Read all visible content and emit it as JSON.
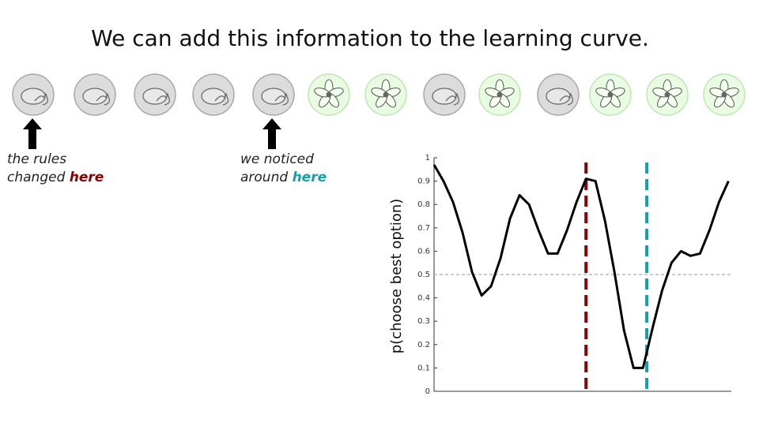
{
  "title": "We can add this information to the learning curve.",
  "annotations": [
    {
      "line1": "the rules",
      "line2": "changed",
      "emphasis": "here",
      "color": "#8b0000"
    },
    {
      "line1": "we noticed",
      "line2": "around",
      "emphasis": "here",
      "color": "#14a0a8"
    }
  ],
  "chart_data": {
    "type": "line",
    "y_label": "p(choose best option)",
    "x": [
      1,
      2,
      3,
      4,
      5,
      6,
      7,
      8,
      9,
      10,
      11,
      12,
      13,
      14,
      15,
      16,
      17,
      18,
      19,
      20,
      21,
      22,
      23,
      24,
      25,
      26,
      27,
      28,
      29,
      30,
      31,
      32
    ],
    "series": [
      {
        "name": "p(choose best option)",
        "color": "#000000",
        "values": [
          0.97,
          0.9,
          0.81,
          0.68,
          0.51,
          0.41,
          0.45,
          0.57,
          0.74,
          0.84,
          0.8,
          0.69,
          0.59,
          0.59,
          0.69,
          0.81,
          0.91,
          0.9,
          0.73,
          0.51,
          0.26,
          0.1,
          0.1,
          0.27,
          0.43,
          0.55,
          0.6,
          0.58,
          0.59,
          0.69,
          0.81,
          0.9
        ]
      }
    ],
    "xlim": [
      1,
      32.3
    ],
    "ylim": [
      0,
      1
    ],
    "yticks": [
      0,
      0.1,
      0.2,
      0.3,
      0.4,
      0.5,
      0.6,
      0.7,
      0.8,
      0.9,
      1
    ],
    "reference_line_y": 0.5,
    "vertical_lines": [
      {
        "x": 17,
        "color": "#8b0000"
      },
      {
        "x": 23.4,
        "color": "#14a0a8"
      }
    ]
  }
}
